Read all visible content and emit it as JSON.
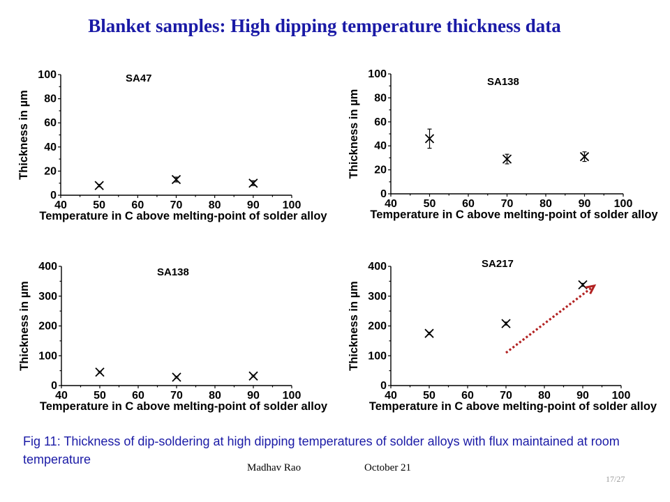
{
  "slide": {
    "title": "Blanket samples: High dipping temperature thickness data",
    "caption": "Fig 11: Thickness of dip-soldering at high dipping temperatures of solder alloys with flux maintained at room temperature",
    "author": "Madhav Rao",
    "date": "October 21",
    "page": "17/27",
    "title_color": "#1a1aa6",
    "caption_color": "#1a1aa6"
  },
  "chart_data": [
    {
      "type": "scatter",
      "title": "SA47",
      "xlabel": "Temperature in C above melting-point of solder alloy",
      "ylabel": "Thickness in µm",
      "xlim": [
        40,
        100
      ],
      "ylim": [
        0,
        100
      ],
      "xticks": [
        "40",
        "50",
        "60",
        "70",
        "80",
        "90",
        "100"
      ],
      "yticks": [
        "0",
        "20",
        "40",
        "60",
        "80",
        "100"
      ],
      "x": [
        50,
        70,
        90
      ],
      "y": [
        8,
        13,
        10
      ],
      "err": [
        1,
        2,
        2
      ],
      "marker": "x"
    },
    {
      "type": "scatter",
      "title": "SA138",
      "xlabel": "Temperature in C above melting-point of solder alloy",
      "ylabel": "Thickness in µm",
      "xlim": [
        40,
        100
      ],
      "ylim": [
        0,
        100
      ],
      "xticks": [
        "40",
        "50",
        "60",
        "70",
        "80",
        "90",
        "100"
      ],
      "yticks": [
        "0",
        "20",
        "40",
        "60",
        "80",
        "100"
      ],
      "x": [
        50,
        70,
        90
      ],
      "y": [
        46,
        29,
        31
      ],
      "err": [
        8,
        4,
        4
      ],
      "marker": "x"
    },
    {
      "type": "scatter",
      "title": "SA138",
      "xlabel": "Temperature in C above melting-point of solder alloy",
      "ylabel": "Thickness in µm",
      "xlim": [
        40,
        100
      ],
      "ylim": [
        0,
        400
      ],
      "xticks": [
        "40",
        "50",
        "60",
        "70",
        "80",
        "90",
        "100"
      ],
      "yticks": [
        "0",
        "100",
        "200",
        "300",
        "400"
      ],
      "x": [
        50,
        70,
        90
      ],
      "y": [
        45,
        28,
        32
      ],
      "err": [
        3,
        3,
        3
      ],
      "marker": "x"
    },
    {
      "type": "scatter",
      "title": "SA217",
      "xlabel": "Temperature in C above melting-point of solder alloy",
      "ylabel": "Thickness in µm",
      "xlim": [
        40,
        100
      ],
      "ylim": [
        0,
        400
      ],
      "xticks": [
        "40",
        "50",
        "60",
        "70",
        "80",
        "90",
        "100"
      ],
      "yticks": [
        "0",
        "100",
        "200",
        "300",
        "400"
      ],
      "x": [
        50,
        70,
        90
      ],
      "y": [
        175,
        208,
        338
      ],
      "err": [
        4,
        5,
        5
      ],
      "marker": "x",
      "annotation": {
        "type": "dotted-arrow",
        "color": "#b22222",
        "from": [
          70,
          110
        ],
        "to": [
          93,
          335
        ]
      }
    }
  ]
}
